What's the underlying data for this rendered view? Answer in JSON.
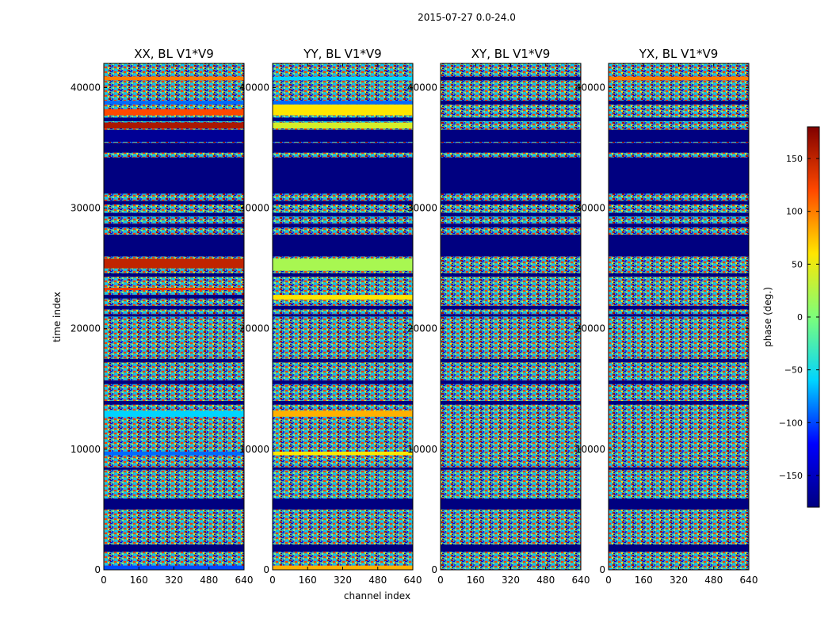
{
  "figure_title": "2015-07-27 0.0-24.0",
  "chart_data": [
    {
      "type": "heatmap",
      "title": "XX, BL V1*V9",
      "xlabel": "channel index",
      "ylabel": "time index",
      "xlim": [
        0,
        640
      ],
      "ylim": [
        0,
        42000
      ],
      "xticks": [
        0,
        160,
        320,
        480,
        640
      ],
      "yticks": [
        0,
        10000,
        20000,
        30000,
        40000
      ],
      "value_range": [
        -180,
        180
      ],
      "noise_color": "#3a5d8a",
      "bands": [
        {
          "t0": 0,
          "t1": 350,
          "value": -100
        },
        {
          "t0": 1500,
          "t1": 2100,
          "value": -180
        },
        {
          "t0": 5000,
          "t1": 5900,
          "value": -180
        },
        {
          "t0": 8300,
          "t1": 8500,
          "value": -180
        },
        {
          "t0": 9500,
          "t1": 9800,
          "value": -90
        },
        {
          "t0": 12700,
          "t1": 13200,
          "value": -60
        },
        {
          "t0": 13700,
          "t1": 14000,
          "value": -180
        },
        {
          "t0": 15400,
          "t1": 15700,
          "value": -180
        },
        {
          "t0": 17200,
          "t1": 17500,
          "value": -180
        },
        {
          "t0": 21000,
          "t1": 21200,
          "value": -180
        },
        {
          "t0": 21600,
          "t1": 21900,
          "value": -180
        },
        {
          "t0": 22500,
          "t1": 22800,
          "value": -180
        },
        {
          "t0": 23200,
          "t1": 23400,
          "value": 130
        },
        {
          "t0": 24300,
          "t1": 24600,
          "value": -180
        },
        {
          "t0": 25000,
          "t1": 25800,
          "value": 150
        },
        {
          "t0": 26000,
          "t1": 27800,
          "value": -180
        },
        {
          "t0": 28400,
          "t1": 28700,
          "value": -180
        },
        {
          "t0": 29300,
          "t1": 29600,
          "value": -180
        },
        {
          "t0": 30300,
          "t1": 30600,
          "value": -180
        },
        {
          "t0": 31200,
          "t1": 34200,
          "value": -180
        },
        {
          "t0": 34600,
          "t1": 35400,
          "value": -180
        },
        {
          "t0": 35500,
          "t1": 36500,
          "value": -170
        },
        {
          "t0": 36600,
          "t1": 37100,
          "value": 160
        },
        {
          "t0": 37200,
          "t1": 37500,
          "value": -180
        },
        {
          "t0": 37700,
          "t1": 38200,
          "value": 120
        },
        {
          "t0": 38600,
          "t1": 38900,
          "value": -90
        },
        {
          "t0": 40600,
          "t1": 40900,
          "value": 100
        }
      ]
    },
    {
      "type": "heatmap",
      "title": "YY, BL V1*V9",
      "xlabel": "channel index",
      "ylabel": "",
      "xlim": [
        0,
        640
      ],
      "ylim": [
        0,
        42000
      ],
      "xticks": [
        0,
        160,
        320,
        480,
        640
      ],
      "yticks": [
        0,
        10000,
        20000,
        30000,
        40000
      ],
      "value_range": [
        -180,
        180
      ],
      "noise_color": "#3a5d8a",
      "bands": [
        {
          "t0": 0,
          "t1": 350,
          "value": 80
        },
        {
          "t0": 1500,
          "t1": 2100,
          "value": -180
        },
        {
          "t0": 5000,
          "t1": 5900,
          "value": -180
        },
        {
          "t0": 8300,
          "t1": 8500,
          "value": -180
        },
        {
          "t0": 9500,
          "t1": 9800,
          "value": 60
        },
        {
          "t0": 12700,
          "t1": 13200,
          "value": 80
        },
        {
          "t0": 13700,
          "t1": 14000,
          "value": -180
        },
        {
          "t0": 15400,
          "t1": 15700,
          "value": -180
        },
        {
          "t0": 17200,
          "t1": 17500,
          "value": -180
        },
        {
          "t0": 21000,
          "t1": 21200,
          "value": -180
        },
        {
          "t0": 21600,
          "t1": 21900,
          "value": -180
        },
        {
          "t0": 22400,
          "t1": 22800,
          "value": 60
        },
        {
          "t0": 24300,
          "t1": 24600,
          "value": -180
        },
        {
          "t0": 24800,
          "t1": 25800,
          "value": 20
        },
        {
          "t0": 26000,
          "t1": 27800,
          "value": -180
        },
        {
          "t0": 28400,
          "t1": 28700,
          "value": -180
        },
        {
          "t0": 29300,
          "t1": 29600,
          "value": -180
        },
        {
          "t0": 30300,
          "t1": 30600,
          "value": -180
        },
        {
          "t0": 31200,
          "t1": 34200,
          "value": -180
        },
        {
          "t0": 34600,
          "t1": 35400,
          "value": -180
        },
        {
          "t0": 35500,
          "t1": 36500,
          "value": -180
        },
        {
          "t0": 36600,
          "t1": 37100,
          "value": 40
        },
        {
          "t0": 37200,
          "t1": 37500,
          "value": -180
        },
        {
          "t0": 37700,
          "t1": 38600,
          "value": 60
        },
        {
          "t0": 38600,
          "t1": 38900,
          "value": -90
        },
        {
          "t0": 40600,
          "t1": 40900,
          "value": -60
        }
      ]
    },
    {
      "type": "heatmap",
      "title": "XY, BL V1*V9",
      "xlabel": "channel index",
      "ylabel": "",
      "xlim": [
        0,
        640
      ],
      "ylim": [
        0,
        42000
      ],
      "xticks": [
        0,
        160,
        320,
        480,
        640
      ],
      "yticks": [
        0,
        10000,
        20000,
        30000,
        40000
      ],
      "value_range": [
        -180,
        180
      ],
      "noise_color": "#3a5d8a",
      "bands": [
        {
          "t0": 1500,
          "t1": 2100,
          "value": -180
        },
        {
          "t0": 5000,
          "t1": 5900,
          "value": -180
        },
        {
          "t0": 8300,
          "t1": 8500,
          "value": -180
        },
        {
          "t0": 13700,
          "t1": 14000,
          "value": -180
        },
        {
          "t0": 15400,
          "t1": 15700,
          "value": -180
        },
        {
          "t0": 17200,
          "t1": 17500,
          "value": -180
        },
        {
          "t0": 21000,
          "t1": 21200,
          "value": -180
        },
        {
          "t0": 21600,
          "t1": 21900,
          "value": -180
        },
        {
          "t0": 24300,
          "t1": 24600,
          "value": -180
        },
        {
          "t0": 26000,
          "t1": 27800,
          "value": -180
        },
        {
          "t0": 28400,
          "t1": 28700,
          "value": -180
        },
        {
          "t0": 29300,
          "t1": 29600,
          "value": -180
        },
        {
          "t0": 30300,
          "t1": 30600,
          "value": -180
        },
        {
          "t0": 31200,
          "t1": 34200,
          "value": -180
        },
        {
          "t0": 34600,
          "t1": 35400,
          "value": -180
        },
        {
          "t0": 35500,
          "t1": 36500,
          "value": -180
        },
        {
          "t0": 37200,
          "t1": 37500,
          "value": -180
        },
        {
          "t0": 38600,
          "t1": 38900,
          "value": -180
        },
        {
          "t0": 40600,
          "t1": 40900,
          "value": -180
        }
      ]
    },
    {
      "type": "heatmap",
      "title": "YX, BL V1*V9",
      "xlabel": "channel index",
      "ylabel": "",
      "xlim": [
        0,
        640
      ],
      "ylim": [
        0,
        42000
      ],
      "xticks": [
        0,
        160,
        320,
        480,
        640
      ],
      "yticks": [
        0,
        10000,
        20000,
        30000,
        40000
      ],
      "value_range": [
        -180,
        180
      ],
      "noise_color": "#3a5d8a",
      "bands": [
        {
          "t0": 1500,
          "t1": 2100,
          "value": -180
        },
        {
          "t0": 5000,
          "t1": 5900,
          "value": -180
        },
        {
          "t0": 8300,
          "t1": 8500,
          "value": -180
        },
        {
          "t0": 13700,
          "t1": 14000,
          "value": -180
        },
        {
          "t0": 15400,
          "t1": 15700,
          "value": -180
        },
        {
          "t0": 17200,
          "t1": 17500,
          "value": -180
        },
        {
          "t0": 21000,
          "t1": 21200,
          "value": -180
        },
        {
          "t0": 21600,
          "t1": 21900,
          "value": -180
        },
        {
          "t0": 24300,
          "t1": 24600,
          "value": -180
        },
        {
          "t0": 26000,
          "t1": 27800,
          "value": -180
        },
        {
          "t0": 28400,
          "t1": 28700,
          "value": -180
        },
        {
          "t0": 29300,
          "t1": 29600,
          "value": -180
        },
        {
          "t0": 30300,
          "t1": 30600,
          "value": -180
        },
        {
          "t0": 31200,
          "t1": 34200,
          "value": -180
        },
        {
          "t0": 34600,
          "t1": 35400,
          "value": -180
        },
        {
          "t0": 35500,
          "t1": 36500,
          "value": -180
        },
        {
          "t0": 37200,
          "t1": 37500,
          "value": -180
        },
        {
          "t0": 38600,
          "t1": 38900,
          "value": -180
        },
        {
          "t0": 40600,
          "t1": 40900,
          "value": 100
        }
      ]
    }
  ],
  "colorbar": {
    "label": "phase (deg.)",
    "range": [
      -180,
      180
    ],
    "ticks": [
      -150,
      -100,
      -50,
      0,
      50,
      100,
      150
    ],
    "tick_labels": [
      "−150",
      "−100",
      "−50",
      "0",
      "50",
      "100",
      "150"
    ],
    "colormap": [
      "#000080",
      "#0000ff",
      "#00d4ff",
      "#7dff7a",
      "#ffe600",
      "#ff4800",
      "#800000"
    ]
  }
}
